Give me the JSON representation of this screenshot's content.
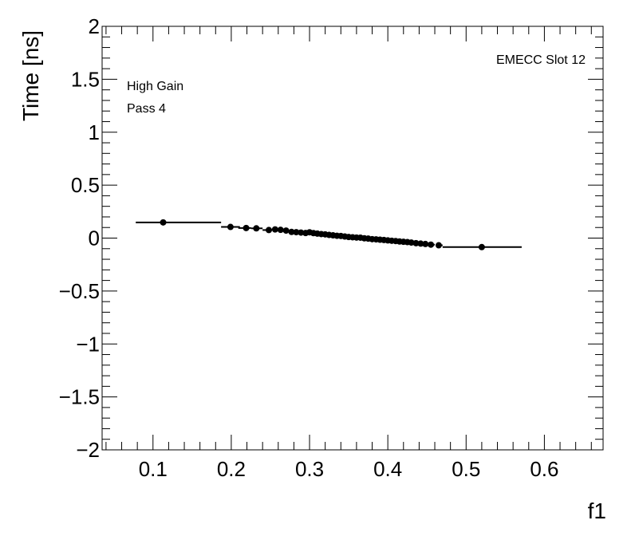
{
  "chart_data": {
    "type": "scatter",
    "title": "",
    "xlabel": "f1",
    "ylabel": "Time [ns]",
    "xlim": [
      0.035,
      0.675
    ],
    "ylim": [
      -2,
      2
    ],
    "x_ticks": [
      0.1,
      0.2,
      0.3,
      0.4,
      0.5,
      0.6
    ],
    "x_tick_labels": [
      "0.1",
      "0.2",
      "0.3",
      "0.4",
      "0.5",
      "0.6"
    ],
    "y_ticks": [
      -2,
      -1.5,
      -1,
      -0.5,
      0,
      0.5,
      1,
      1.5,
      2
    ],
    "y_tick_labels": [
      "−2",
      "−1.5",
      "−1",
      "−0.5",
      "0",
      "0.5",
      "1",
      "1.5",
      "2"
    ],
    "annotations": [
      "High Gain",
      "Pass 4",
      "EMECC Slot 12"
    ],
    "grid": false,
    "legend": "none",
    "marker_color": "#000000",
    "points": [
      {
        "x": 0.113,
        "y": 0.148,
        "xerr_low": 0.078,
        "xerr_high": 0.187
      },
      {
        "x": 0.199,
        "y": 0.105,
        "xerr_low": 0.187,
        "xerr_high": 0.211
      },
      {
        "x": 0.219,
        "y": 0.095
      },
      {
        "x": 0.232,
        "y": 0.092
      },
      {
        "x": 0.248,
        "y": 0.076
      },
      {
        "x": 0.256,
        "y": 0.082
      },
      {
        "x": 0.263,
        "y": 0.078
      },
      {
        "x": 0.27,
        "y": 0.071
      },
      {
        "x": 0.277,
        "y": 0.058
      },
      {
        "x": 0.283,
        "y": 0.056
      },
      {
        "x": 0.289,
        "y": 0.052
      },
      {
        "x": 0.295,
        "y": 0.048
      },
      {
        "x": 0.3,
        "y": 0.055
      },
      {
        "x": 0.305,
        "y": 0.047
      },
      {
        "x": 0.31,
        "y": 0.042
      },
      {
        "x": 0.315,
        "y": 0.038
      },
      {
        "x": 0.32,
        "y": 0.035
      },
      {
        "x": 0.325,
        "y": 0.03
      },
      {
        "x": 0.33,
        "y": 0.026
      },
      {
        "x": 0.335,
        "y": 0.022
      },
      {
        "x": 0.34,
        "y": 0.02
      },
      {
        "x": 0.345,
        "y": 0.015
      },
      {
        "x": 0.35,
        "y": 0.01
      },
      {
        "x": 0.355,
        "y": 0.008
      },
      {
        "x": 0.36,
        "y": 0.005
      },
      {
        "x": 0.365,
        "y": 0.004
      },
      {
        "x": 0.37,
        "y": -0.002
      },
      {
        "x": 0.375,
        "y": -0.005
      },
      {
        "x": 0.38,
        "y": -0.01
      },
      {
        "x": 0.385,
        "y": -0.012
      },
      {
        "x": 0.39,
        "y": -0.015
      },
      {
        "x": 0.395,
        "y": -0.018
      },
      {
        "x": 0.4,
        "y": -0.022
      },
      {
        "x": 0.405,
        "y": -0.025
      },
      {
        "x": 0.41,
        "y": -0.028
      },
      {
        "x": 0.415,
        "y": -0.032
      },
      {
        "x": 0.42,
        "y": -0.035
      },
      {
        "x": 0.425,
        "y": -0.038
      },
      {
        "x": 0.43,
        "y": -0.042
      },
      {
        "x": 0.436,
        "y": -0.048
      },
      {
        "x": 0.442,
        "y": -0.052
      },
      {
        "x": 0.448,
        "y": -0.056
      },
      {
        "x": 0.455,
        "y": -0.062
      },
      {
        "x": 0.465,
        "y": -0.068,
        "xerr_low": 0.462,
        "xerr_high": 0.47
      },
      {
        "x": 0.52,
        "y": -0.085,
        "xerr_low": 0.47,
        "xerr_high": 0.571
      }
    ]
  }
}
